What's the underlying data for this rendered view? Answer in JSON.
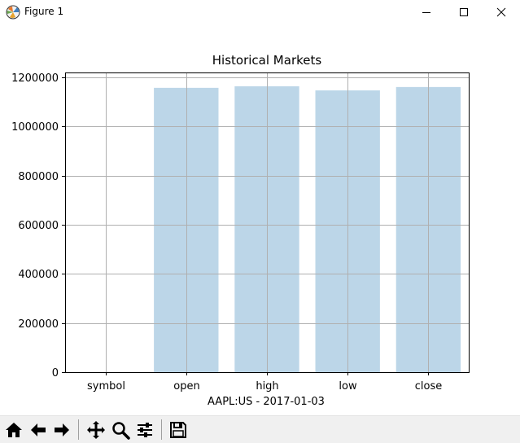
{
  "window": {
    "title": "Figure 1",
    "icons": [
      "matplotlib-icon",
      "minimize-icon",
      "maximize-icon",
      "close-icon"
    ]
  },
  "chart_data": {
    "type": "bar",
    "title": "Historical Markets",
    "xlabel": "AAPL:US - 2017-01-03",
    "ylabel": "",
    "categories": [
      "symbol",
      "open",
      "high",
      "low",
      "close"
    ],
    "values": [
      0,
      1157500,
      1163800,
      1147100,
      1160800
    ],
    "ylim": [
      0,
      1220000
    ],
    "yticks": [
      0,
      200000,
      400000,
      600000,
      800000,
      1000000,
      1200000
    ],
    "grid": true,
    "bar_color": "#bcd6e8",
    "grid_color": "#b0b0b0"
  },
  "toolbar": {
    "buttons": [
      "home-icon",
      "back-icon",
      "forward-icon",
      "pan-icon",
      "zoom-icon",
      "configure-subplots-icon",
      "save-icon"
    ]
  }
}
